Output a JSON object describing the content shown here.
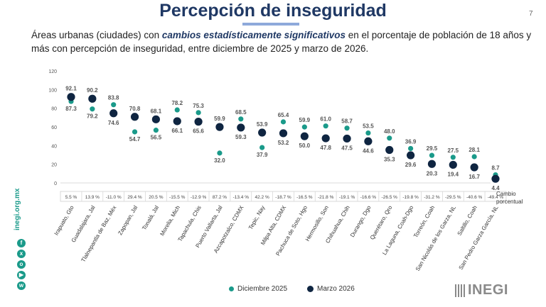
{
  "title": "Percepción de inseguridad",
  "page_number": "7",
  "subtitle": {
    "prefix": "Áreas urbanas (ciudades) con ",
    "emphasis": "cambios estadísticamente significativos",
    "suffix": " en el porcentaje de población de 18 años y más con percepción de inseguridad, entre diciembre de 2025 y marzo de 2026."
  },
  "side_text": "inegi.org.mx",
  "social_icons": [
    "facebook-icon",
    "x-icon",
    "instagram-icon",
    "youtube-icon",
    "whatsapp-icon"
  ],
  "logo_text": "INEGI",
  "colors": {
    "dec": "#1a9a8a",
    "mar": "#0f2541",
    "title": "#1f3864"
  },
  "chart_data": {
    "type": "scatter",
    "title": "",
    "xlabel": "",
    "ylabel": "",
    "ylim": [
      0,
      120
    ],
    "yticks": [
      0,
      20,
      40,
      60,
      80,
      100,
      120
    ],
    "grid": false,
    "legend_position": "bottom",
    "change_label": "Cambio porcentual",
    "categories": [
      "Irapuato, Gto",
      "Guadalajara, Jal",
      "Tlalnepantla de Baz, Méx",
      "Zapopan, Jal",
      "Tonalá, Jal",
      "Morelia, Mich",
      "Tapachula, Chis",
      "Puerto Vallarta, Jal",
      "Azcapotzalco, CDMX",
      "Tepic, Nay",
      "Milpa Alta, CDMX",
      "Pachuca de Soto, Hgo",
      "Hermosillo, Son",
      "Chihuahua, Chih",
      "Durango, Dgo",
      "Querétaro, Qro",
      "La Laguna, Coah-Dgo",
      "Torreón, Coah",
      "San Nicolás de los Garza, NL",
      "Saltillo, Coah",
      "San Pedro Garza García, NL"
    ],
    "change": [
      "5.5 %",
      "13.9 %",
      "-11.0 %",
      "29.4 %",
      "20.5 %",
      "-15.5 %",
      "-12.9 %",
      "87.2 %",
      "-13.4 %",
      "42.2 %",
      "-18.7 %",
      "-16.5 %",
      "-21.8 %",
      "-19.1 %",
      "-16.6 %",
      "-26.5 %",
      "-19.8 %",
      "-31.2 %",
      "-29.5 %",
      "-40.6 %",
      "-49.4 %"
    ],
    "series": [
      {
        "name": "Diciembre 2025",
        "values": [
          87.3,
          79.2,
          83.8,
          54.7,
          56.5,
          78.2,
          75.3,
          32.0,
          68.5,
          37.9,
          65.4,
          59.9,
          61.0,
          58.7,
          53.5,
          48.0,
          36.9,
          29.5,
          27.5,
          28.1,
          8.7
        ]
      },
      {
        "name": "Marzo 2026",
        "values": [
          92.1,
          90.2,
          74.6,
          70.8,
          68.1,
          66.1,
          65.6,
          59.9,
          59.3,
          53.9,
          53.2,
          50.0,
          47.8,
          47.5,
          44.6,
          35.3,
          29.6,
          20.3,
          19.4,
          16.7,
          4.4
        ]
      }
    ]
  },
  "labels": {
    "dec": [
      "87.3",
      "79.2",
      "83.8",
      "54.7",
      "56.5",
      "78.2",
      "75.3",
      "32.0",
      "68.5",
      "37.9",
      "65.4",
      "59.9",
      "61.0",
      "58.7",
      "53.5",
      "48.0",
      "36.9",
      "29.5",
      "27.5",
      "28.1",
      "8.7"
    ],
    "mar": [
      "92.1",
      "90.2",
      "74.6",
      "70.8",
      "68.1",
      "66.1",
      "65.6",
      "59.9",
      "59.3",
      "53.9",
      "53.2",
      "50.0",
      "47.8",
      "47.5",
      "44.6",
      "35.3",
      "29.6",
      "20.3",
      "19.4",
      "16.7",
      "4.4"
    ],
    "yticks": [
      "0",
      "20",
      "40",
      "60",
      "80",
      "100",
      "120"
    ]
  }
}
